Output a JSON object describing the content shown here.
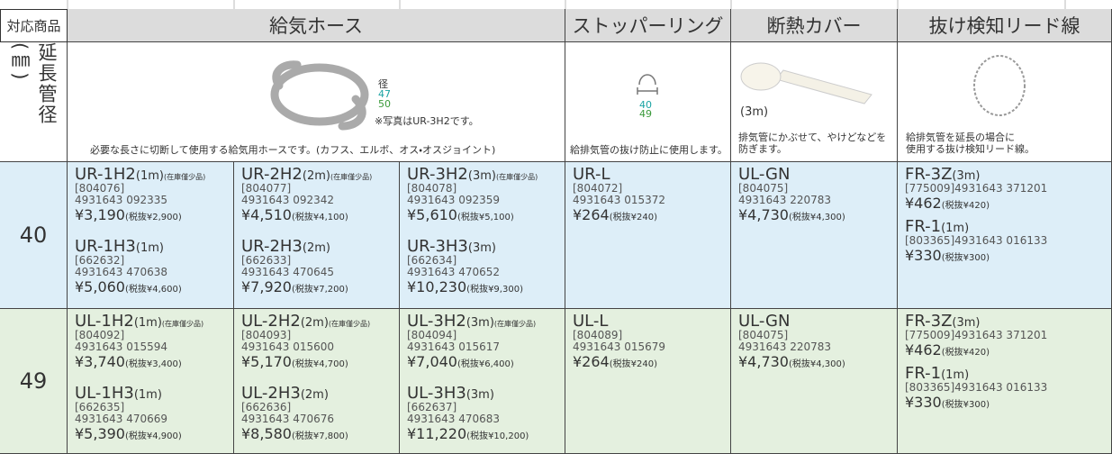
{
  "header": {
    "label": "対応商品",
    "columns": [
      "給気ホース",
      "ストッパーリング",
      "断熱カバー",
      "抜け検知リード線"
    ]
  },
  "side_label": "延長管径(㎜)",
  "photos": {
    "hose": {
      "dims": [
        "径",
        "47",
        "50"
      ],
      "note": "※写真はUR-3H2です。",
      "caption": "必要な長さに切断して使用する給気用ホースです。(カフス、エルボ、オス・オスジョイント)"
    },
    "stopper": {
      "dims": [
        "40",
        "49"
      ],
      "caption": "給排気管の抜け防止に使用します。"
    },
    "cover": {
      "length": "(3m)",
      "caption": [
        "排気管にかぶせて、やけどなどを",
        "防ぎます。"
      ]
    },
    "lead": {
      "caption": [
        "給排気管を延長の場合に",
        "使用する抜け検知リード線。"
      ]
    }
  },
  "rows": [
    {
      "size": "40",
      "cells": [
        [
          {
            "model": "UR-1H2",
            "length": "(1m)",
            "note": "(在庫僅少品)",
            "code": "[804076]",
            "jan": "4931643 092335",
            "price": "¥3,190",
            "tax": "(税抜¥2,900)"
          },
          {
            "model": "UR-1H3",
            "length": "(1m)",
            "code": "[662632]",
            "jan": "4931643 470638",
            "price": "¥5,060",
            "tax": "(税抜¥4,600)"
          }
        ],
        [
          {
            "model": "UR-2H2",
            "length": "(2m)",
            "note": "(在庫僅少品)",
            "code": "[804077]",
            "jan": "4931643 092342",
            "price": "¥4,510",
            "tax": "(税抜¥4,100)"
          },
          {
            "model": "UR-2H3",
            "length": "(2m)",
            "code": "[662633]",
            "jan": "4931643 470645",
            "price": "¥7,920",
            "tax": "(税抜¥7,200)"
          }
        ],
        [
          {
            "model": "UR-3H2",
            "length": "(3m)",
            "note": "(在庫僅少品)",
            "code": "[804078]",
            "jan": "4931643 092359",
            "price": "¥5,610",
            "tax": "(税抜¥5,100)"
          },
          {
            "model": "UR-3H3",
            "length": "(3m)",
            "code": "[662634]",
            "jan": "4931643 470652",
            "price": "¥10,230",
            "tax": "(税抜¥9,300)"
          }
        ],
        [
          {
            "model": "UR-L",
            "code": "[804072]",
            "jan": "4931643 015372",
            "price": "¥264",
            "tax": "(税抜¥240)"
          }
        ],
        [
          {
            "model": "UL-GN",
            "code": "[804075]",
            "jan": "4931643 220783",
            "price": "¥4,730",
            "tax": "(税抜¥4,300)"
          }
        ],
        [
          {
            "model": "FR-3Z",
            "length": "(3m)",
            "code": "[775009]",
            "jan": "4931643 371201",
            "price": "¥462",
            "tax": "(税抜¥420)"
          },
          {
            "model": "FR-1",
            "length": "(1m)",
            "code": "[803365]",
            "jan": "4931643 016133",
            "price": "¥330",
            "tax": "(税抜¥300)"
          }
        ]
      ]
    },
    {
      "size": "49",
      "cells": [
        [
          {
            "model": "UL-1H2",
            "length": "(1m)",
            "note": "(在庫僅少品)",
            "code": "[804092]",
            "jan": "4931643 015594",
            "price": "¥3,740",
            "tax": "(税抜¥3,400)"
          },
          {
            "model": "UL-1H3",
            "length": "(1m)",
            "code": "[662635]",
            "jan": "4931643 470669",
            "price": "¥5,390",
            "tax": "(税抜¥4,900)"
          }
        ],
        [
          {
            "model": "UL-2H2",
            "length": "(2m)",
            "note": "(在庫僅少品)",
            "code": "[804093]",
            "jan": "4931643 015600",
            "price": "¥5,170",
            "tax": "(税抜¥4,700)"
          },
          {
            "model": "UL-2H3",
            "length": "(2m)",
            "code": "[662636]",
            "jan": "4931643 470676",
            "price": "¥8,580",
            "tax": "(税抜¥7,800)"
          }
        ],
        [
          {
            "model": "UL-3H2",
            "length": "(3m)",
            "note": "(在庫僅少品)",
            "code": "[804094]",
            "jan": "4931643 015617",
            "price": "¥7,040",
            "tax": "(税抜¥6,400)"
          },
          {
            "model": "UL-3H3",
            "length": "(3m)",
            "code": "[662637]",
            "jan": "4931643 470683",
            "price": "¥11,220",
            "tax": "(税抜¥10,200)"
          }
        ],
        [
          {
            "model": "UL-L",
            "code": "[804089]",
            "jan": "4931643 015679",
            "price": "¥264",
            "tax": "(税抜¥240)"
          }
        ],
        [
          {
            "model": "UL-GN",
            "code": "[804075]",
            "jan": "4931643 220783",
            "price": "¥4,730",
            "tax": "(税抜¥4,300)"
          }
        ],
        [
          {
            "model": "FR-3Z",
            "length": "(3m)",
            "code": "[775009]",
            "jan": "4931643 371201",
            "price": "¥462",
            "tax": "(税抜¥420)"
          },
          {
            "model": "FR-1",
            "length": "(1m)",
            "code": "[803365]",
            "jan": "4931643 016133",
            "price": "¥330",
            "tax": "(税抜¥300)"
          }
        ]
      ]
    }
  ]
}
